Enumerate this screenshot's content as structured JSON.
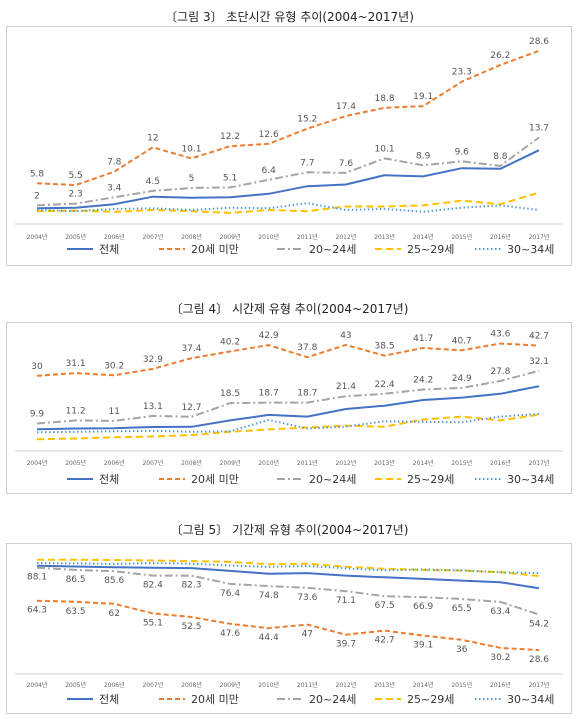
{
  "chart_data": [
    {
      "type": "line",
      "title": "〔그림 3〕 초단시간 유형 추이(2004~2017년)",
      "categories": [
        "2004년",
        "2005년",
        "2006년",
        "2007년",
        "2008년",
        "2009년",
        "2010년",
        "2011년",
        "2012년",
        "2013년",
        "2014년",
        "2015년",
        "2016년",
        "2017년"
      ],
      "ylim": [
        0,
        31
      ],
      "grid": false,
      "legend_position": "bottom",
      "labeled_series": [
        1,
        2
      ],
      "series": [
        {
          "name": "전체",
          "color": "#4472C4",
          "dash": "",
          "values": [
            1.5,
            1.6,
            2.2,
            3.5,
            3.3,
            3.4,
            4.0,
            5.3,
            5.6,
            7.2,
            7.0,
            8.4,
            8.3,
            11.5
          ]
        },
        {
          "name": "20세 미만",
          "color": "#ED7D31",
          "dash": "5,3",
          "values": [
            5.8,
            5.5,
            7.8,
            12,
            10.1,
            12.2,
            12.6,
            15.2,
            17.4,
            18.8,
            19.1,
            23.3,
            26.2,
            28.6
          ]
        },
        {
          "name": "20~24세",
          "color": "#A5A5A5",
          "dash": "8,3,2,3",
          "values": [
            2,
            2.3,
            3.4,
            4.5,
            5,
            5.1,
            6.4,
            7.7,
            7.6,
            10.1,
            8.9,
            9.6,
            8.8,
            13.7
          ]
        },
        {
          "name": "25~29세",
          "color": "#FFC000",
          "dash": "7,4",
          "values": [
            1.0,
            1.1,
            0.9,
            1.2,
            1.0,
            0.7,
            1.2,
            1.0,
            1.8,
            1.8,
            2.0,
            2.8,
            2.2,
            4.2
          ]
        },
        {
          "name": "30~34세",
          "color": "#5B9BD5",
          "dash": "1.5,2.5",
          "values": [
            1.2,
            1.0,
            1.4,
            1.5,
            1.2,
            1.6,
            1.5,
            2.4,
            1.2,
            1.4,
            0.9,
            1.6,
            2.0,
            1.2
          ]
        }
      ]
    },
    {
      "type": "line",
      "title": "〔그림 4〕 시간제 유형 추이(2004~2017년)",
      "categories": [
        "2004년",
        "2005년",
        "2006년",
        "2007년",
        "2008년",
        "2009년",
        "2010년",
        "2011년",
        "2012년",
        "2013년",
        "2014년",
        "2015년",
        "2016년",
        "2017년"
      ],
      "ylim": [
        0,
        48
      ],
      "grid": false,
      "legend_position": "bottom",
      "labeled_series": [
        1,
        2
      ],
      "series": [
        {
          "name": "전체",
          "color": "#4472C4",
          "dash": "",
          "values": [
            7.5,
            7.8,
            7.9,
            8.4,
            8.5,
            11.2,
            13.5,
            12.8,
            16.0,
            17.4,
            19.8,
            20.8,
            22.4,
            25.6
          ]
        },
        {
          "name": "20세 미만",
          "color": "#ED7D31",
          "dash": "5,3",
          "values": [
            30,
            31.1,
            30.2,
            32.9,
            37.4,
            40.2,
            42.9,
            37.8,
            43,
            38.5,
            41.7,
            40.7,
            43.6,
            42.7
          ]
        },
        {
          "name": "20~24세",
          "color": "#A5A5A5",
          "dash": "8,3,2,3",
          "values": [
            9.9,
            11.2,
            11,
            13.1,
            12.7,
            18.5,
            18.7,
            18.7,
            21.4,
            22.4,
            24.2,
            24.9,
            27.8,
            32.1
          ]
        },
        {
          "name": "25~29세",
          "color": "#FFC000",
          "dash": "7,4",
          "values": [
            3.3,
            3.6,
            4.1,
            4.4,
            5.0,
            6.4,
            7.4,
            8.2,
            9.0,
            8.5,
            11.6,
            12.8,
            11.2,
            13.6
          ]
        },
        {
          "name": "30~34세",
          "color": "#5B9BD5",
          "dash": "1.5,2.5",
          "values": [
            6.2,
            6.4,
            6.6,
            6.8,
            6.4,
            6.6,
            11.4,
            7.8,
            8.6,
            10.8,
            10.6,
            10.4,
            12.8,
            14.0
          ]
        }
      ]
    },
    {
      "type": "line",
      "title": "〔그림 5〕 기간제 유형 추이(2004~2017년)",
      "categories": [
        "2004년",
        "2005년",
        "2006년",
        "2007년",
        "2008년",
        "2009년",
        "2010년",
        "2011년",
        "2012년",
        "2013년",
        "2014년",
        "2015년",
        "2016년",
        "2017년"
      ],
      "ylim": [
        20,
        98
      ],
      "grid": false,
      "legend_position": "bottom",
      "labeled_series": [
        1,
        2
      ],
      "series": [
        {
          "name": "전체",
          "color": "#4472C4",
          "dash": "",
          "values": [
            89.5,
            89.0,
            88.5,
            88.0,
            87.8,
            85.8,
            83.8,
            84.2,
            82.4,
            81.2,
            80.0,
            78.8,
            77.6,
            73.2
          ]
        },
        {
          "name": "20세 미만",
          "color": "#ED7D31",
          "dash": "5,3",
          "values": [
            64.3,
            63.5,
            62,
            55.1,
            52.5,
            47.6,
            44.4,
            47,
            39.7,
            42.7,
            39.1,
            36,
            30.2,
            28.6
          ]
        },
        {
          "name": "20~24세",
          "color": "#A5A5A5",
          "dash": "8,3,2,3",
          "values": [
            88.1,
            86.5,
            85.6,
            82.4,
            82.3,
            76.4,
            74.8,
            73.6,
            71.1,
            67.5,
            66.9,
            65.5,
            63.4,
            54.2
          ]
        },
        {
          "name": "25~29세",
          "color": "#FFC000",
          "dash": "7,4",
          "values": [
            93.8,
            93.9,
            93.7,
            93.3,
            92.9,
            92.3,
            90.6,
            91.0,
            88.8,
            87.4,
            86.5,
            86.0,
            84.9,
            82.1
          ]
        },
        {
          "name": "30~34세",
          "color": "#5B9BD5",
          "dash": "1.5,2.5",
          "values": [
            91.5,
            91.2,
            90.8,
            91.5,
            91.0,
            89.7,
            88.7,
            89.4,
            87.6,
            86.2,
            86.8,
            86.2,
            84.7,
            84.3
          ]
        }
      ]
    }
  ]
}
